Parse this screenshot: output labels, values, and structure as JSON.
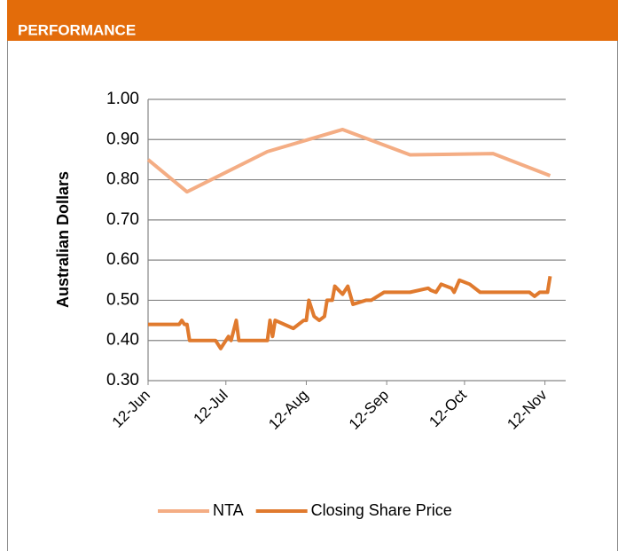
{
  "header": {
    "title": "PERFORMANCE"
  },
  "chart_data": {
    "type": "line",
    "ylabel": "Australian Dollars",
    "xlim": [
      0,
      161
    ],
    "xticks": [
      {
        "value": 0,
        "label": "12-Jun"
      },
      {
        "value": 30,
        "label": "12-Jul"
      },
      {
        "value": 61,
        "label": "12-Aug"
      },
      {
        "value": 92,
        "label": "12-Sep"
      },
      {
        "value": 122,
        "label": "12-Oct"
      },
      {
        "value": 153,
        "label": "12-Nov"
      }
    ],
    "ylim": [
      0.3,
      1.0
    ],
    "yticks": [
      {
        "value": 0.3,
        "label": "0.30"
      },
      {
        "value": 0.4,
        "label": "0.40"
      },
      {
        "value": 0.5,
        "label": "0.50"
      },
      {
        "value": 0.6,
        "label": "0.60"
      },
      {
        "value": 0.7,
        "label": "0.70"
      },
      {
        "value": 0.8,
        "label": "0.80"
      },
      {
        "value": 0.9,
        "label": "0.90"
      },
      {
        "value": 1.0,
        "label": "1.00"
      }
    ],
    "grid": true,
    "legend": "bottom",
    "series": [
      {
        "name": "NTA",
        "color": "#F4AD84",
        "x": [
          0,
          15,
          46,
          75,
          101,
          133,
          155
        ],
        "values": [
          0.85,
          0.77,
          0.87,
          0.925,
          0.862,
          0.865,
          0.81
        ]
      },
      {
        "name": "Closing Share Price",
        "color": "#E07A2E",
        "x": [
          0,
          12,
          13,
          14,
          15,
          16,
          26,
          28,
          31,
          32,
          34,
          35,
          46,
          47,
          48,
          49,
          56,
          60,
          61,
          62,
          64,
          66,
          68,
          69,
          71,
          72,
          75,
          77,
          79,
          84,
          86,
          91,
          101,
          108,
          109,
          111,
          113,
          117,
          118,
          120,
          124,
          128,
          147,
          149,
          151,
          154,
          155
        ],
        "values": [
          0.44,
          0.44,
          0.45,
          0.44,
          0.44,
          0.4,
          0.4,
          0.38,
          0.41,
          0.4,
          0.45,
          0.4,
          0.4,
          0.45,
          0.41,
          0.45,
          0.43,
          0.45,
          0.45,
          0.5,
          0.46,
          0.45,
          0.46,
          0.5,
          0.5,
          0.535,
          0.515,
          0.535,
          0.49,
          0.5,
          0.5,
          0.52,
          0.52,
          0.53,
          0.525,
          0.52,
          0.54,
          0.53,
          0.52,
          0.55,
          0.54,
          0.52,
          0.52,
          0.51,
          0.52,
          0.52,
          0.56
        ]
      }
    ]
  }
}
